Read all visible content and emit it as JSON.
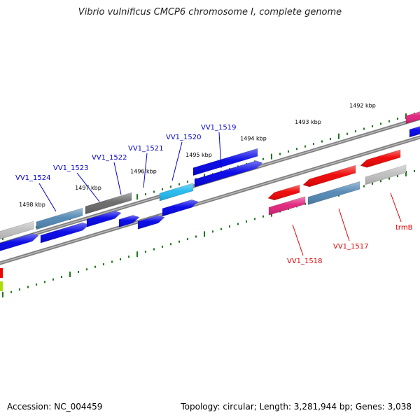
{
  "title": "Vibrio vulnificus CMCP6 chromosome I, complete genome",
  "footer": {
    "accession": "Accession: NC_004459",
    "summary": "Topology: circular; Length: 3,281,944 bp; Genes: 3,038"
  },
  "colors": {
    "backbone": "#808080",
    "tick": "#1a7a1a",
    "forward_label": "#0000cc",
    "reverse_label": "#dd0000",
    "cds_blue": "#0000e6",
    "gene_lightgray": "#bdbdbd",
    "gene_steelblue": "#4f86b3",
    "gene_darkgray": "#666666",
    "gene_cyan": "#1eb8ee",
    "gene_red": "#ee0000",
    "gene_magenta": "#e0207a",
    "gene_yellowgreen": "#aadd00"
  },
  "scale": {
    "unit": "kbp",
    "tick_labels": [
      "1492 kbp",
      "1493 kbp",
      "1494 kbp",
      "1495 kbp",
      "1496 kbp",
      "1497 kbp",
      "1498 kbp"
    ]
  },
  "labels": {
    "forward": [
      "VV1_1524",
      "VV1_1523",
      "VV1_1522",
      "VV1_1521",
      "VV1_1520",
      "VV1_1519"
    ],
    "reverse": [
      "VV1_1518",
      "VV1_1517",
      "trmB"
    ]
  }
}
